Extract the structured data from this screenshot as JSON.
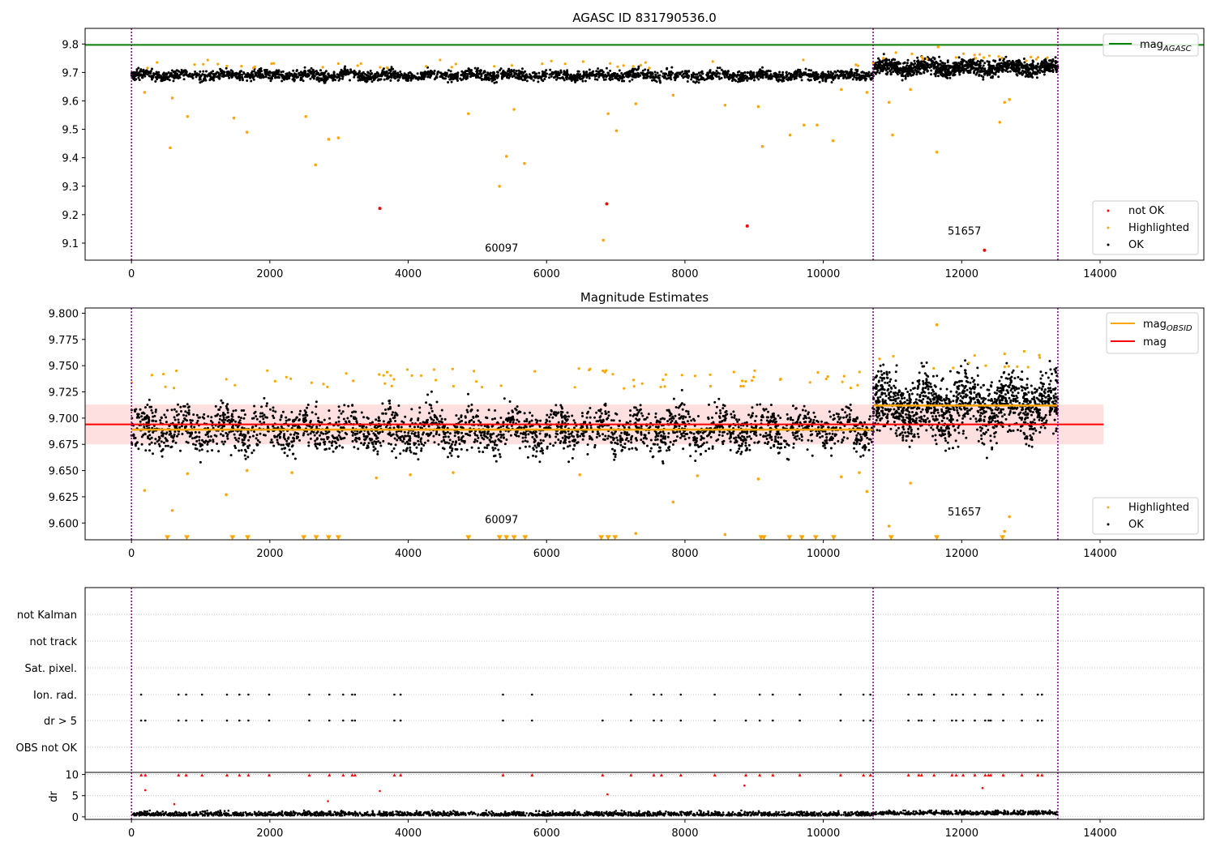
{
  "chart_data": [
    {
      "type": "scatter",
      "title": "AGASC ID 831790536.0",
      "xlim": [
        -670,
        15500
      ],
      "ylim": [
        9.04,
        9.855
      ],
      "x_ticks": [
        "0",
        "2000",
        "4000",
        "6000",
        "8000",
        "10000",
        "12000",
        "14000"
      ],
      "y_ticks": [
        "9.1",
        "9.2",
        "9.3",
        "9.4",
        "9.5",
        "9.6",
        "9.7",
        "9.8"
      ],
      "grid": false,
      "legend_upper": {
        "placement": "top-right",
        "entries": [
          {
            "label": "mag",
            "subscript": "AGASC",
            "color": "#008000"
          }
        ]
      },
      "legend_lower": {
        "placement": "bottom-right",
        "entries": [
          {
            "label": "not OK",
            "color": "#ff0000"
          },
          {
            "label": "Highlighted",
            "color": "#ffa500"
          },
          {
            "label": "OK",
            "color": "#000000"
          }
        ]
      },
      "mag_agasc": 9.797,
      "obsid_boundaries": [
        0,
        10720,
        13390
      ],
      "obsid_labels": [
        {
          "text": "60097",
          "x": 5350,
          "y": 9.07
        },
        {
          "text": "51657",
          "x": 12040,
          "y": 9.13
        }
      ],
      "series": [
        {
          "name": "OK",
          "color": "#000000",
          "segments": [
            {
              "x_start": 0,
              "x_end": 10720,
              "center": 9.69,
              "spread": 0.012
            },
            {
              "x_start": 10720,
              "x_end": 13390,
              "center": 9.717,
              "spread": 0.018
            }
          ]
        },
        {
          "name": "Highlighted",
          "color": "#ffa500",
          "points": [
            [
              190,
              9.63
            ],
            [
              560,
              9.435
            ],
            [
              590,
              9.61
            ],
            [
              810,
              9.545
            ],
            [
              1480,
              9.54
            ],
            [
              1670,
              9.49
            ],
            [
              2520,
              9.545
            ],
            [
              2660,
              9.375
            ],
            [
              2850,
              9.465
            ],
            [
              2990,
              9.47
            ],
            [
              4870,
              9.555
            ],
            [
              5320,
              9.3
            ],
            [
              5420,
              9.405
            ],
            [
              5530,
              9.57
            ],
            [
              5680,
              9.38
            ],
            [
              6820,
              9.11
            ],
            [
              6890,
              9.555
            ],
            [
              7010,
              9.495
            ],
            [
              7290,
              9.59
            ],
            [
              7830,
              9.62
            ],
            [
              8580,
              9.585
            ],
            [
              9060,
              9.58
            ],
            [
              9120,
              9.44
            ],
            [
              9520,
              9.48
            ],
            [
              9720,
              9.515
            ],
            [
              9910,
              9.515
            ],
            [
              10140,
              9.46
            ],
            [
              10260,
              9.64
            ],
            [
              10630,
              9.63
            ],
            [
              10950,
              9.595
            ],
            [
              11000,
              9.48
            ],
            [
              11260,
              9.64
            ],
            [
              11640,
              9.42
            ],
            [
              12550,
              9.525
            ],
            [
              12620,
              9.595
            ],
            [
              12690,
              9.605
            ],
            [
              11660,
              9.79
            ]
          ]
        },
        {
          "name": "not OK",
          "color": "#ff0000",
          "points": [
            [
              3590,
              9.222
            ],
            [
              6870,
              9.238
            ],
            [
              8900,
              9.16
            ],
            [
              12330,
              9.075
            ]
          ]
        }
      ]
    },
    {
      "type": "scatter",
      "title": "Magnitude Estimates",
      "xlim": [
        -670,
        15500
      ],
      "ylim": [
        9.584,
        9.805
      ],
      "x_ticks": [
        "0",
        "2000",
        "4000",
        "6000",
        "8000",
        "10000",
        "12000",
        "14000"
      ],
      "y_ticks": [
        "9.600",
        "9.625",
        "9.650",
        "9.675",
        "9.700",
        "9.725",
        "9.750",
        "9.775",
        "9.800"
      ],
      "grid": false,
      "legend_upper": {
        "placement": "top-right",
        "entries": [
          {
            "label": "mag",
            "subscript": "OBSID",
            "color": "#ffa500"
          },
          {
            "label": "mag",
            "subscript": "",
            "color": "#ff0000"
          }
        ]
      },
      "legend_lower": {
        "placement": "bottom-right",
        "entries": [
          {
            "label": "Highlighted",
            "color": "#ffa500"
          },
          {
            "label": "OK",
            "color": "#000000"
          }
        ]
      },
      "mag": 9.694,
      "mag_band": [
        9.675,
        9.713
      ],
      "mag_line_xrange": [
        -670,
        14050
      ],
      "mag_obsid": [
        {
          "x_start": 0,
          "x_end": 10720,
          "value": 9.689
        },
        {
          "x_start": 10720,
          "x_end": 13390,
          "value": 9.712
        }
      ],
      "obsid_boundaries": [
        0,
        10720,
        13390
      ],
      "obsid_labels": [
        {
          "text": "60097",
          "x": 5350,
          "y": 9.6
        },
        {
          "text": "51657",
          "x": 12040,
          "y": 9.607
        }
      ],
      "series": [
        {
          "name": "OK",
          "color": "#000000",
          "segments": [
            {
              "x_start": 0,
              "x_end": 10720,
              "center": 9.689,
              "spread": 0.014
            },
            {
              "x_start": 10720,
              "x_end": 13390,
              "center": 9.712,
              "spread": 0.02
            }
          ]
        },
        {
          "name": "Highlighted",
          "color": "#ffa500",
          "points": [
            [
              190,
              9.631
            ],
            [
              590,
              9.612
            ],
            [
              810,
              9.647
            ],
            [
              1370,
              9.627
            ],
            [
              1670,
              9.65
            ],
            [
              2320,
              9.648
            ],
            [
              3540,
              9.643
            ],
            [
              4030,
              9.646
            ],
            [
              4650,
              9.648
            ],
            [
              6480,
              9.646
            ],
            [
              7290,
              9.59
            ],
            [
              7830,
              9.62
            ],
            [
              8180,
              9.645
            ],
            [
              8580,
              9.589
            ],
            [
              9060,
              9.642
            ],
            [
              10260,
              9.644
            ],
            [
              10520,
              9.648
            ],
            [
              10630,
              9.63
            ],
            [
              10950,
              9.597
            ],
            [
              11260,
              9.638
            ],
            [
              12690,
              9.606
            ],
            [
              12620,
              9.592
            ],
            [
              11640,
              9.789
            ]
          ]
        },
        {
          "name": "Highlighted (off scale)",
          "color": "#ffa500",
          "marker": "triangle-down",
          "value": 9.586,
          "x": [
            520,
            800,
            1460,
            1680,
            2490,
            2670,
            2850,
            2990,
            4870,
            5320,
            5420,
            5530,
            5690,
            6790,
            6890,
            6990,
            9100,
            9140,
            9510,
            9690,
            9890,
            10150,
            10980,
            11640,
            12590
          ]
        }
      ]
    },
    {
      "type": "scatter",
      "title": "",
      "xlim": [
        -670,
        15500
      ],
      "x_ticks": [
        "0",
        "2000",
        "4000",
        "6000",
        "8000",
        "10000",
        "12000",
        "14000"
      ],
      "flag_labels": [
        "not Kalman",
        "not track",
        "Sat. pixel.",
        "Ion. rad.",
        "dr > 5",
        "OBS not OK"
      ],
      "obsid_boundaries": [
        0,
        10720,
        13390
      ],
      "flags": {
        "ion_rad": [
          140,
          680,
          790,
          1020,
          1380,
          1560,
          1690,
          1990,
          2570,
          2860,
          3060,
          3190,
          3230,
          3800,
          3890,
          5370,
          5790,
          7220,
          7550,
          7660,
          7940,
          8430,
          9080,
          9270,
          9660,
          10250,
          10580,
          10680,
          11230,
          11380,
          11420,
          11600,
          11860,
          11920,
          12020,
          12190,
          12390,
          12420,
          12600,
          12870,
          13100,
          13160
        ],
        "dr_gt_5": [
          140,
          200,
          680,
          790,
          1020,
          1380,
          1560,
          1690,
          1990,
          2570,
          2860,
          3060,
          3190,
          3230,
          3800,
          3890,
          5370,
          5790,
          6810,
          7220,
          7550,
          7660,
          7940,
          8430,
          8880,
          9080,
          9270,
          9660,
          10250,
          10580,
          10680,
          11230,
          11380,
          11420,
          11600,
          11860,
          11920,
          12020,
          12190,
          12340,
          12390,
          12420,
          12600,
          12870,
          13100,
          13160
        ]
      },
      "dr_panel": {
        "ylabel": "dr",
        "ylim": [
          -0.6,
          10.5
        ],
        "y_ticks": [
          "0",
          "5",
          "10"
        ],
        "baseline_spread": 1.2,
        "points_high": [
          [
            620,
            3.0
          ],
          [
            2840,
            3.7
          ],
          [
            6880,
            5.3
          ],
          [
            8860,
            7.4
          ],
          [
            12300,
            6.8
          ],
          [
            3590,
            6.1
          ],
          [
            200,
            6.3
          ]
        ]
      }
    }
  ]
}
